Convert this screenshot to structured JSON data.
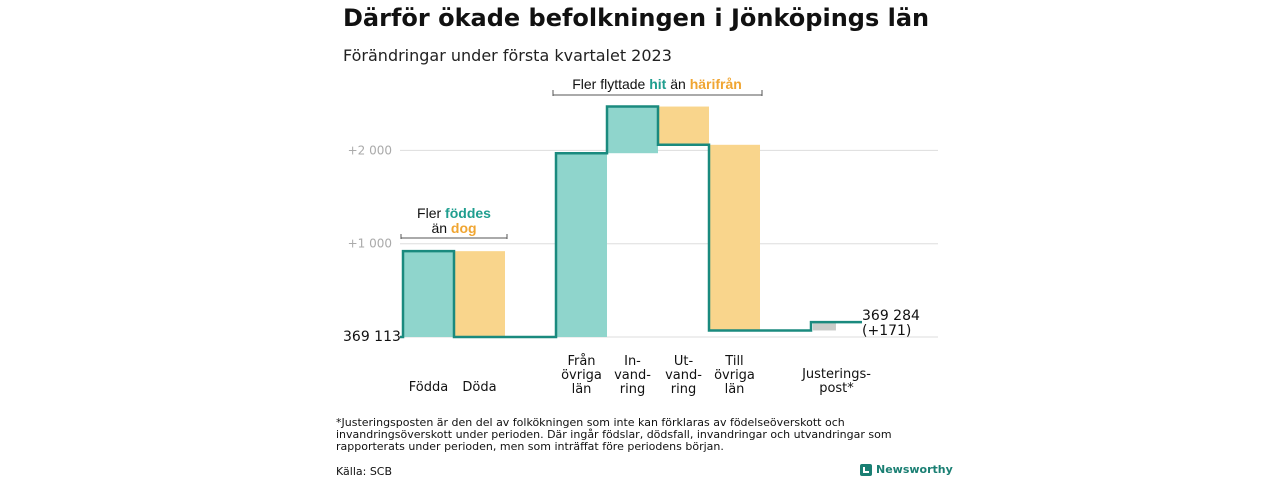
{
  "title": "Därför ökade befolkningen i Jönköpings län",
  "subtitle": "Förändringar under första kvartalet 2023",
  "footnote": "*Justeringsposten är den del av folkökningen som inte kan förklaras av födelseöverskott och invandringsöverskott under perioden. Där ingår födslar, dödsfall, invandringar och utvandringar som rapporterats under perioden, men som inträffat före periodens början.",
  "source": "Källa: SCB",
  "brand": "Newsworthy",
  "colors": {
    "increase": "#8fd5cc",
    "decrease": "#f9d58c",
    "line": "#1a8a7e",
    "adjust": "#c9ccc9",
    "grid": "#dddddd"
  },
  "annotations": {
    "births": {
      "line1_a": "Fler ",
      "line1_b": "föddes",
      "line2_a": "än ",
      "line2_b": "dog"
    },
    "migration": {
      "part_a": "Fler flyttade ",
      "part_b": "hit",
      "part_c": " än ",
      "part_d": "härifrån"
    }
  },
  "chart_data": {
    "type": "waterfall",
    "title": "Därför ökade befolkningen i Jönköpings län",
    "subtitle": "Förändringar under första kvartalet 2023",
    "start_label": "369 113",
    "start_value": 369113,
    "end_label_1": "369 284",
    "end_label_2": "(+171)",
    "end_value": 369284,
    "yticks": [
      {
        "value": 1000,
        "label": "+1 000"
      },
      {
        "value": 2000,
        "label": "+2 000"
      }
    ],
    "ylim": [
      0,
      2500
    ],
    "steps": [
      {
        "label": [
          "Födda"
        ],
        "change": 920,
        "kind": "increase"
      },
      {
        "label": [
          "Döda"
        ],
        "change": -920,
        "kind": "decrease"
      },
      {
        "label": [
          "Från",
          "övriga",
          "län"
        ],
        "change": 1970,
        "kind": "increase"
      },
      {
        "label": [
          "In-",
          "vand-",
          "ring"
        ],
        "change": 500,
        "kind": "increase"
      },
      {
        "label": [
          "Ut-",
          "vand-",
          "ring"
        ],
        "change": -410,
        "kind": "decrease"
      },
      {
        "label": [
          "Till",
          "övriga",
          "län"
        ],
        "change": -1990,
        "kind": "decrease"
      },
      {
        "label": [
          "Justerings-",
          "post*"
        ],
        "change": 90,
        "kind": "adjust"
      }
    ]
  }
}
